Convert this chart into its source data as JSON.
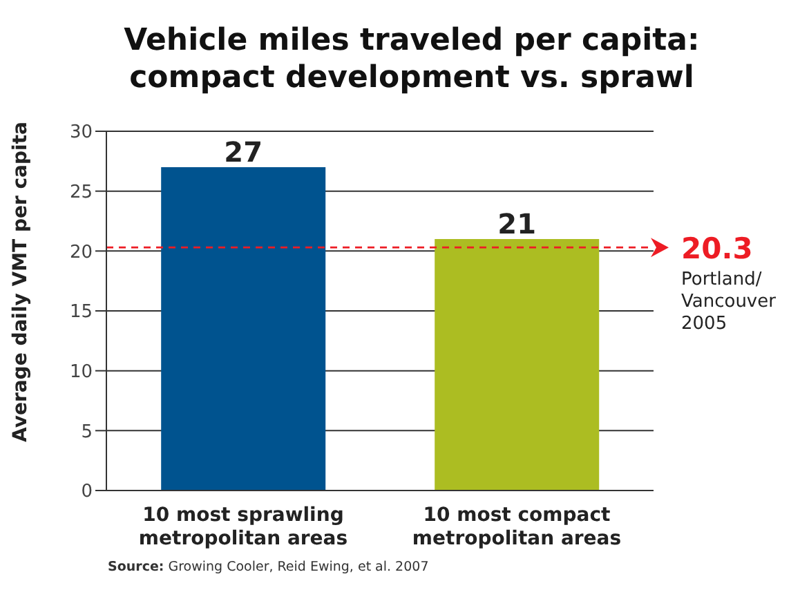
{
  "chart_data": {
    "type": "bar",
    "title": "Vehicle miles traveled per capita: compact development vs. sprawl",
    "ylabel": "Average daily VMT per capita",
    "categories": [
      "10 most sprawling metropolitan areas",
      "10 most compact metropolitan areas"
    ],
    "values": [
      27,
      21
    ],
    "colors": [
      "#00538f",
      "#acbd22"
    ],
    "ylim": [
      0,
      30
    ],
    "yticks": [
      0,
      5,
      10,
      15,
      20,
      25,
      30
    ],
    "grid": "y",
    "data_labels": true,
    "ref_lines": [
      {
        "axis": "y",
        "value": 20.3,
        "label": "20.3",
        "color": "#ed1c24",
        "line_style": "dashed"
      }
    ],
    "annotations": [
      "Portland/ Vancouver 2005",
      "Source: Growing Cooler, Reid Ewing, et al. 2007"
    ]
  }
}
